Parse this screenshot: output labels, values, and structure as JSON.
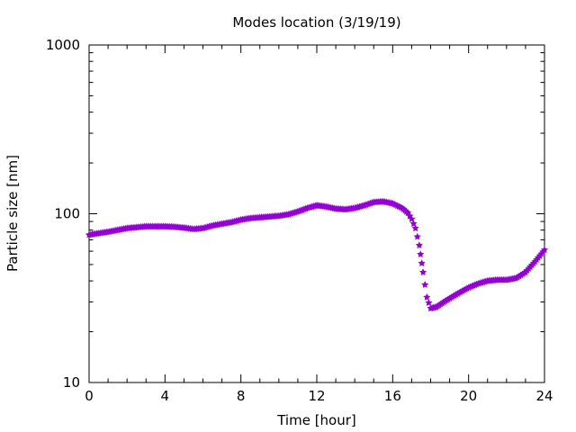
{
  "chart_data": {
    "type": "scatter",
    "title": "Modes location (3/19/19)",
    "xlabel": "Time [hour]",
    "ylabel": "Particle size [nm]",
    "xlim": [
      0,
      24
    ],
    "ylim": [
      10,
      1000
    ],
    "yscale": "log",
    "x_ticks": [
      0,
      4,
      8,
      12,
      16,
      20,
      24
    ],
    "y_ticks": [
      10,
      100,
      1000
    ],
    "marker": "star",
    "color": "#9400d3",
    "grid": false,
    "legend": "none",
    "series": [
      {
        "values_x": [
          0,
          0.5,
          1,
          1.5,
          2,
          2.5,
          3,
          3.5,
          4,
          4.5,
          5,
          5.5,
          6,
          6.5,
          7,
          7.5,
          8,
          8.5,
          9,
          9.5,
          10,
          10.5,
          11,
          11.5,
          12,
          12.5,
          13,
          13.5,
          14,
          14.5,
          15,
          15.5,
          16,
          16.5,
          16.8,
          17,
          17.2,
          17.4,
          17.6,
          17.8,
          18,
          18.3,
          18.6,
          19,
          19.5,
          20,
          20.5,
          21,
          21.5,
          22,
          22.5,
          23,
          23.5,
          24
        ],
        "values_y": [
          75,
          76.5,
          78,
          80,
          82,
          83,
          84,
          84,
          84,
          83.5,
          82.5,
          81,
          82,
          85,
          87,
          89,
          92,
          94,
          95,
          96,
          97,
          99,
          103,
          108,
          112,
          110,
          107,
          106,
          108,
          112,
          117,
          118,
          115,
          108,
          101,
          93,
          82,
          65,
          45,
          32,
          27.5,
          28,
          29.5,
          31.5,
          34,
          36.5,
          38.5,
          40,
          40.5,
          40.5,
          41.5,
          45,
          52,
          61
        ]
      }
    ]
  }
}
